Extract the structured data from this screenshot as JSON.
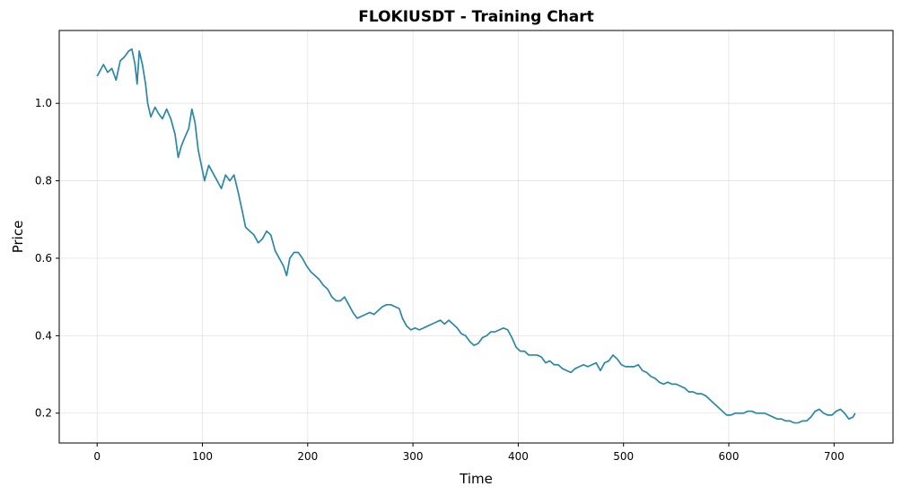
{
  "chart_data": {
    "type": "line",
    "title": "FLOKIUSDT - Training Chart",
    "xlabel": "Time",
    "ylabel": "Price",
    "xlim": [
      -36,
      756
    ],
    "ylim": [
      0.123,
      1.188
    ],
    "xticks": [
      0,
      100,
      200,
      300,
      400,
      500,
      600,
      700
    ],
    "yticks": [
      0.2,
      0.4,
      0.6,
      0.8,
      1.0
    ],
    "ytick_labels": [
      "0.2",
      "0.4",
      "0.6",
      "0.8",
      "1.0"
    ],
    "grid": true,
    "colors": {
      "line": "#2a87a8"
    },
    "series": [
      {
        "points": [
          [
            0,
            1.07
          ],
          [
            3,
            1.085
          ],
          [
            6,
            1.1
          ],
          [
            10,
            1.08
          ],
          [
            14,
            1.09
          ],
          [
            18,
            1.06
          ],
          [
            22,
            1.11
          ],
          [
            26,
            1.12
          ],
          [
            30,
            1.135
          ],
          [
            33,
            1.14
          ],
          [
            36,
            1.1
          ],
          [
            38,
            1.05
          ],
          [
            40,
            1.135
          ],
          [
            43,
            1.1
          ],
          [
            46,
            1.05
          ],
          [
            48,
            1.0
          ],
          [
            51,
            0.965
          ],
          [
            55,
            0.99
          ],
          [
            58,
            0.975
          ],
          [
            62,
            0.96
          ],
          [
            66,
            0.985
          ],
          [
            70,
            0.96
          ],
          [
            74,
            0.92
          ],
          [
            77,
            0.86
          ],
          [
            80,
            0.89
          ],
          [
            83,
            0.91
          ],
          [
            87,
            0.935
          ],
          [
            90,
            0.985
          ],
          [
            93,
            0.95
          ],
          [
            96,
            0.88
          ],
          [
            99,
            0.84
          ],
          [
            102,
            0.8
          ],
          [
            106,
            0.84
          ],
          [
            110,
            0.82
          ],
          [
            114,
            0.8
          ],
          [
            118,
            0.78
          ],
          [
            122,
            0.815
          ],
          [
            126,
            0.8
          ],
          [
            130,
            0.815
          ],
          [
            134,
            0.77
          ],
          [
            138,
            0.72
          ],
          [
            141,
            0.68
          ],
          [
            145,
            0.67
          ],
          [
            149,
            0.66
          ],
          [
            153,
            0.64
          ],
          [
            157,
            0.65
          ],
          [
            161,
            0.67
          ],
          [
            165,
            0.66
          ],
          [
            169,
            0.62
          ],
          [
            173,
            0.6
          ],
          [
            177,
            0.58
          ],
          [
            180,
            0.555
          ],
          [
            183,
            0.6
          ],
          [
            187,
            0.615
          ],
          [
            191,
            0.615
          ],
          [
            195,
            0.6
          ],
          [
            199,
            0.58
          ],
          [
            203,
            0.565
          ],
          [
            207,
            0.555
          ],
          [
            211,
            0.545
          ],
          [
            215,
            0.53
          ],
          [
            219,
            0.52
          ],
          [
            223,
            0.5
          ],
          [
            227,
            0.49
          ],
          [
            231,
            0.49
          ],
          [
            235,
            0.5
          ],
          [
            239,
            0.48
          ],
          [
            243,
            0.46
          ],
          [
            247,
            0.445
          ],
          [
            251,
            0.45
          ],
          [
            255,
            0.455
          ],
          [
            259,
            0.46
          ],
          [
            263,
            0.455
          ],
          [
            267,
            0.465
          ],
          [
            271,
            0.475
          ],
          [
            275,
            0.48
          ],
          [
            279,
            0.48
          ],
          [
            283,
            0.475
          ],
          [
            287,
            0.47
          ],
          [
            290,
            0.445
          ],
          [
            294,
            0.425
          ],
          [
            298,
            0.415
          ],
          [
            302,
            0.42
          ],
          [
            306,
            0.415
          ],
          [
            310,
            0.42
          ],
          [
            314,
            0.425
          ],
          [
            318,
            0.43
          ],
          [
            322,
            0.435
          ],
          [
            326,
            0.44
          ],
          [
            330,
            0.43
          ],
          [
            334,
            0.44
          ],
          [
            338,
            0.43
          ],
          [
            342,
            0.42
          ],
          [
            346,
            0.405
          ],
          [
            350,
            0.4
          ],
          [
            354,
            0.385
          ],
          [
            358,
            0.375
          ],
          [
            362,
            0.38
          ],
          [
            366,
            0.395
          ],
          [
            370,
            0.4
          ],
          [
            374,
            0.41
          ],
          [
            378,
            0.41
          ],
          [
            382,
            0.415
          ],
          [
            386,
            0.42
          ],
          [
            390,
            0.415
          ],
          [
            394,
            0.395
          ],
          [
            398,
            0.37
          ],
          [
            402,
            0.36
          ],
          [
            406,
            0.36
          ],
          [
            410,
            0.35
          ],
          [
            414,
            0.35
          ],
          [
            418,
            0.35
          ],
          [
            422,
            0.345
          ],
          [
            426,
            0.33
          ],
          [
            430,
            0.335
          ],
          [
            434,
            0.325
          ],
          [
            438,
            0.325
          ],
          [
            442,
            0.315
          ],
          [
            446,
            0.31
          ],
          [
            450,
            0.305
          ],
          [
            454,
            0.315
          ],
          [
            458,
            0.32
          ],
          [
            462,
            0.325
          ],
          [
            466,
            0.32
          ],
          [
            470,
            0.325
          ],
          [
            474,
            0.33
          ],
          [
            478,
            0.31
          ],
          [
            482,
            0.33
          ],
          [
            486,
            0.335
          ],
          [
            490,
            0.35
          ],
          [
            494,
            0.34
          ],
          [
            498,
            0.325
          ],
          [
            502,
            0.32
          ],
          [
            506,
            0.32
          ],
          [
            510,
            0.32
          ],
          [
            514,
            0.325
          ],
          [
            518,
            0.31
          ],
          [
            522,
            0.305
          ],
          [
            526,
            0.295
          ],
          [
            530,
            0.29
          ],
          [
            534,
            0.28
          ],
          [
            538,
            0.275
          ],
          [
            542,
            0.28
          ],
          [
            546,
            0.275
          ],
          [
            550,
            0.275
          ],
          [
            554,
            0.27
          ],
          [
            558,
            0.265
          ],
          [
            562,
            0.255
          ],
          [
            566,
            0.255
          ],
          [
            570,
            0.25
          ],
          [
            574,
            0.25
          ],
          [
            578,
            0.245
          ],
          [
            582,
            0.235
          ],
          [
            586,
            0.225
          ],
          [
            590,
            0.215
          ],
          [
            594,
            0.205
          ],
          [
            598,
            0.195
          ],
          [
            602,
            0.195
          ],
          [
            606,
            0.2
          ],
          [
            610,
            0.2
          ],
          [
            614,
            0.2
          ],
          [
            618,
            0.205
          ],
          [
            622,
            0.205
          ],
          [
            626,
            0.2
          ],
          [
            630,
            0.2
          ],
          [
            634,
            0.2
          ],
          [
            638,
            0.195
          ],
          [
            642,
            0.19
          ],
          [
            646,
            0.185
          ],
          [
            650,
            0.185
          ],
          [
            654,
            0.18
          ],
          [
            658,
            0.18
          ],
          [
            662,
            0.175
          ],
          [
            666,
            0.175
          ],
          [
            670,
            0.18
          ],
          [
            674,
            0.18
          ],
          [
            678,
            0.19
          ],
          [
            682,
            0.205
          ],
          [
            686,
            0.21
          ],
          [
            690,
            0.2
          ],
          [
            694,
            0.195
          ],
          [
            698,
            0.195
          ],
          [
            702,
            0.205
          ],
          [
            706,
            0.21
          ],
          [
            710,
            0.2
          ],
          [
            714,
            0.185
          ],
          [
            718,
            0.19
          ],
          [
            720,
            0.2
          ]
        ]
      }
    ]
  }
}
